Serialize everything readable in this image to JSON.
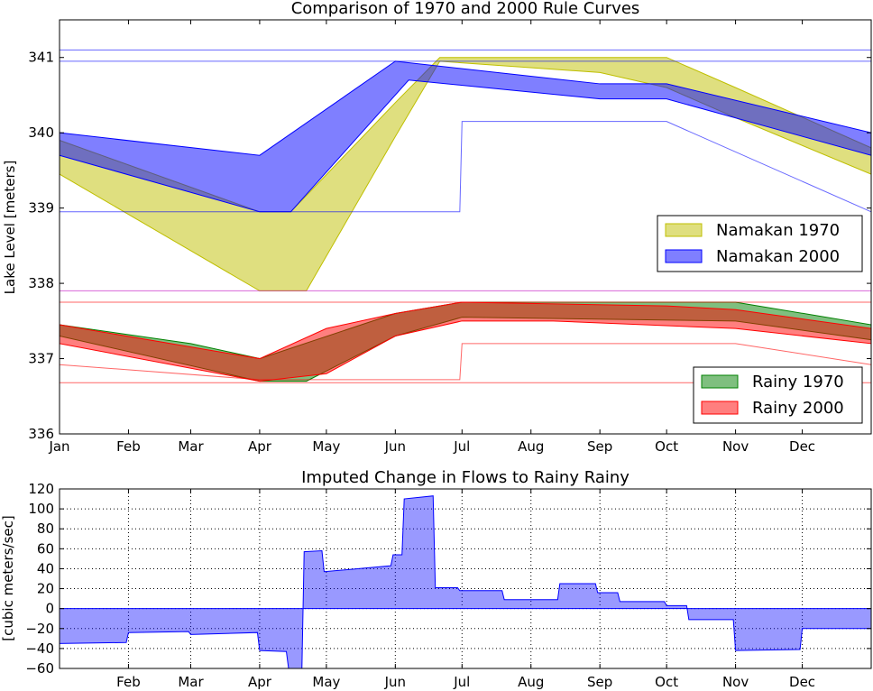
{
  "chart_data": [
    {
      "type": "area",
      "title": "Comparison of 1970 and 2000 Rule Curves",
      "ylabel": "Lake Level [meters]",
      "xlabel": "",
      "xlim": [
        1,
        366
      ],
      "ylim": [
        336,
        341.5
      ],
      "month_ticks": [
        {
          "label": "Jan",
          "day": 1
        },
        {
          "label": "Feb",
          "day": 32
        },
        {
          "label": "Mar",
          "day": 60
        },
        {
          "label": "Apr",
          "day": 91
        },
        {
          "label": "May",
          "day": 121
        },
        {
          "label": "Jun",
          "day": 152
        },
        {
          "label": "Jul",
          "day": 182
        },
        {
          "label": "Aug",
          "day": 213
        },
        {
          "label": "Sep",
          "day": 244
        },
        {
          "label": "Oct",
          "day": 274
        },
        {
          "label": "Nov",
          "day": 305
        },
        {
          "label": "Dec",
          "day": 335
        }
      ],
      "yticks": [
        "336",
        "337",
        "338",
        "339",
        "340",
        "341"
      ],
      "legend_upper": {
        "placement": "center-right",
        "entries": [
          "Namakan 1970",
          "Namakan 2000"
        ]
      },
      "legend_lower": {
        "placement": "lower-right",
        "entries": [
          "Rainy 1970",
          "Rainy 2000"
        ]
      },
      "series": [
        {
          "name": "Namakan 1970",
          "color": "#bfbf00",
          "alpha": 0.5,
          "edge": "#bfbf00",
          "upper": [
            [
              1,
              339.9
            ],
            [
              91,
              338.95
            ],
            [
              105,
              338.95
            ],
            [
              152,
              340.4
            ],
            [
              172,
              341.0
            ],
            [
              244,
              341.0
            ],
            [
              274,
              341.0
            ],
            [
              305,
              340.6
            ],
            [
              366,
              339.8
            ]
          ],
          "lower": [
            [
              1,
              339.45
            ],
            [
              91,
              337.9
            ],
            [
              112,
              337.9
            ],
            [
              152,
              339.95
            ],
            [
              172,
              340.95
            ],
            [
              244,
              340.8
            ],
            [
              274,
              340.6
            ],
            [
              305,
              340.2
            ],
            [
              366,
              339.45
            ]
          ]
        },
        {
          "name": "Namakan 2000",
          "color": "#0000ff",
          "alpha": 0.5,
          "edge": "#0000ff",
          "upper": [
            [
              1,
              340.0
            ],
            [
              91,
              339.7
            ],
            [
              152,
              340.95
            ],
            [
              244,
              340.65
            ],
            [
              274,
              340.65
            ],
            [
              366,
              340.0
            ]
          ],
          "lower": [
            [
              1,
              339.7
            ],
            [
              91,
              338.95
            ],
            [
              105,
              338.95
            ],
            [
              158,
              340.7
            ],
            [
              244,
              340.45
            ],
            [
              274,
              340.45
            ],
            [
              366,
              339.7
            ]
          ]
        },
        {
          "name": "Rainy 1970",
          "color": "#008000",
          "alpha": 0.5,
          "edge": "#008000",
          "upper": [
            [
              1,
              337.45
            ],
            [
              60,
              337.2
            ],
            [
              91,
              337.0
            ],
            [
              152,
              337.6
            ],
            [
              182,
              337.75
            ],
            [
              305,
              337.75
            ],
            [
              366,
              337.45
            ]
          ],
          "lower": [
            [
              1,
              337.3
            ],
            [
              91,
              336.7
            ],
            [
              112,
              336.7
            ],
            [
              152,
              337.3
            ],
            [
              182,
              337.55
            ],
            [
              305,
              337.5
            ],
            [
              366,
              337.25
            ]
          ]
        },
        {
          "name": "Rainy 2000",
          "color": "#ff0000",
          "alpha": 0.5,
          "edge": "#ff0000",
          "upper": [
            [
              1,
              337.45
            ],
            [
              91,
              337.0
            ],
            [
              121,
              337.4
            ],
            [
              152,
              337.6
            ],
            [
              182,
              337.75
            ],
            [
              274,
              337.7
            ],
            [
              305,
              337.65
            ],
            [
              366,
              337.4
            ]
          ],
          "lower": [
            [
              1,
              337.2
            ],
            [
              91,
              336.7
            ],
            [
              121,
              336.8
            ],
            [
              152,
              337.3
            ],
            [
              182,
              337.5
            ],
            [
              223,
              337.5
            ],
            [
              305,
              337.4
            ],
            [
              366,
              337.2
            ]
          ]
        }
      ],
      "reference_lines": [
        {
          "color": "#0000ff",
          "points": [
            [
              1,
              341.1
            ],
            [
              366,
              341.1
            ]
          ]
        },
        {
          "color": "#0000ff",
          "points": [
            [
              1,
              340.95
            ],
            [
              366,
              340.95
            ]
          ]
        },
        {
          "color": "#0000ff",
          "points": [
            [
              1,
              338.95
            ],
            [
              181,
              338.95
            ],
            [
              182,
              340.15
            ],
            [
              274,
              340.15
            ],
            [
              366,
              338.95
            ]
          ]
        },
        {
          "color": "#ff0000",
          "points": [
            [
              1,
              337.75
            ],
            [
              366,
              337.75
            ]
          ]
        },
        {
          "color": "#bf00bf",
          "points": [
            [
              1,
              337.9
            ],
            [
              366,
              337.9
            ]
          ]
        },
        {
          "color": "#ff0000",
          "points": [
            [
              1,
              336.92
            ],
            [
              91,
              336.72
            ],
            [
              181,
              336.72
            ],
            [
              182,
              337.2
            ],
            [
              305,
              337.2
            ],
            [
              366,
              336.92
            ]
          ]
        },
        {
          "color": "#ff0000",
          "points": [
            [
              1,
              336.68
            ],
            [
              366,
              336.68
            ]
          ]
        }
      ]
    },
    {
      "type": "area",
      "title": "Imputed Change in Flows to Rainy Rainy",
      "ylabel": "[cubic meters/sec]",
      "xlabel": "",
      "xlim": [
        1,
        366
      ],
      "ylim": [
        -60,
        120
      ],
      "grid": true,
      "month_ticks": [
        {
          "label": "Feb",
          "day": 32
        },
        {
          "label": "Mar",
          "day": 60
        },
        {
          "label": "Apr",
          "day": 91
        },
        {
          "label": "May",
          "day": 121
        },
        {
          "label": "Jun",
          "day": 152
        },
        {
          "label": "Jul",
          "day": 182
        },
        {
          "label": "Aug",
          "day": 213
        },
        {
          "label": "Sep",
          "day": 244
        },
        {
          "label": "Oct",
          "day": 274
        },
        {
          "label": "Nov",
          "day": 305
        },
        {
          "label": "Dec",
          "day": 335
        }
      ],
      "yticks": [
        "−60",
        "−40",
        "−20",
        "0",
        "20",
        "40",
        "60",
        "80",
        "100",
        "120"
      ],
      "series": [
        {
          "name": "",
          "color": "#0000ff",
          "alpha": 0.4,
          "points": [
            [
              1,
              -35
            ],
            [
              31,
              -34
            ],
            [
              32,
              -24
            ],
            [
              59,
              -23
            ],
            [
              60,
              -26
            ],
            [
              90,
              -24
            ],
            [
              91,
              -42
            ],
            [
              103,
              -43
            ],
            [
              104,
              -60
            ],
            [
              110,
              -60
            ],
            [
              111,
              57
            ],
            [
              119,
              58
            ],
            [
              120,
              37
            ],
            [
              150,
              43
            ],
            [
              151,
              54
            ],
            [
              155,
              54
            ],
            [
              156,
              110
            ],
            [
              169,
              113
            ],
            [
              170,
              21
            ],
            [
              180,
              21
            ],
            [
              181,
              18
            ],
            [
              200,
              18
            ],
            [
              201,
              9
            ],
            [
              225,
              9
            ],
            [
              226,
              25
            ],
            [
              242,
              25
            ],
            [
              243,
              16
            ],
            [
              252,
              16
            ],
            [
              253,
              7
            ],
            [
              273,
              7
            ],
            [
              274,
              3
            ],
            [
              283,
              3
            ],
            [
              284,
              -11
            ],
            [
              304,
              -11
            ],
            [
              305,
              -42
            ],
            [
              334,
              -41
            ],
            [
              335,
              -20
            ],
            [
              366,
              -20
            ]
          ]
        }
      ]
    }
  ]
}
